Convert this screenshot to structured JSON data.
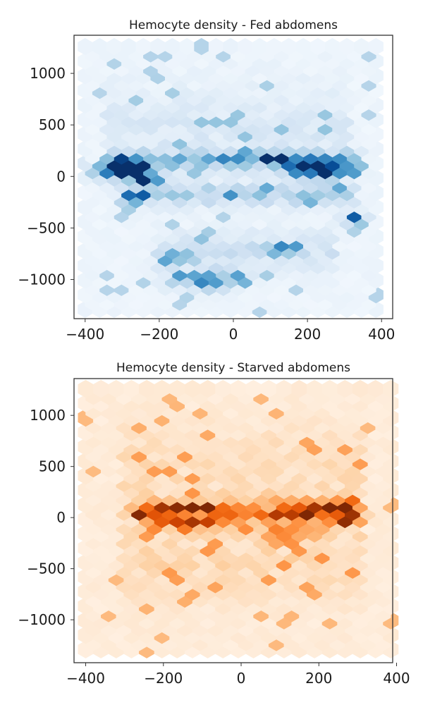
{
  "chart_data": [
    {
      "type": "heatmap",
      "subtype": "hexbin",
      "title": "Hemocyte density - Fed abdomens",
      "xlabel": "",
      "ylabel": "",
      "xlim": [
        -430,
        430
      ],
      "ylim": [
        -1380,
        1370
      ],
      "xticks": [
        -400,
        -200,
        0,
        200,
        400
      ],
      "xtick_labels": [
        "−400",
        "−200",
        "0",
        "200",
        "400"
      ],
      "yticks": [
        -1000,
        -500,
        0,
        500,
        1000
      ],
      "ytick_labels": [
        "−1000",
        "−500",
        "0",
        "500",
        "1000"
      ],
      "colormap": "Blues",
      "grid": false,
      "hex_cols": 20,
      "hex_rows": 36,
      "hotspots": [
        {
          "x": -290,
          "y": 100,
          "sx": 35,
          "sy": 35,
          "w": 1.0
        },
        {
          "x": -250,
          "y": 30,
          "sx": 30,
          "sy": 40,
          "w": 0.9
        },
        {
          "x": -320,
          "y": 80,
          "sx": 40,
          "sy": 50,
          "w": 0.6
        },
        {
          "x": -260,
          "y": -170,
          "sx": 25,
          "sy": 40,
          "w": 0.6
        },
        {
          "x": 180,
          "y": 100,
          "sx": 30,
          "sy": 35,
          "w": 1.0
        },
        {
          "x": 265,
          "y": 100,
          "sx": 40,
          "sy": 40,
          "w": 0.85
        },
        {
          "x": 120,
          "y": 190,
          "sx": 30,
          "sy": 30,
          "w": 0.6
        },
        {
          "x": 230,
          "y": 50,
          "sx": 40,
          "sy": 40,
          "w": 0.5
        },
        {
          "x": 330,
          "y": -400,
          "sx": 20,
          "sy": 40,
          "w": 0.55
        },
        {
          "x": -70,
          "y": -980,
          "sx": 60,
          "sy": 60,
          "w": 0.55
        },
        {
          "x": -160,
          "y": -770,
          "sx": 30,
          "sy": 40,
          "w": 0.5
        },
        {
          "x": 120,
          "y": -680,
          "sx": 30,
          "sy": 40,
          "w": 0.45
        }
      ],
      "bands": [
        {
          "x0": -330,
          "x1": 330,
          "y": 180,
          "sy": 55,
          "w": 0.4
        },
        {
          "x0": -300,
          "x1": 320,
          "y": -150,
          "sy": 70,
          "w": 0.22
        },
        {
          "x0": -200,
          "x1": 250,
          "y": -700,
          "sy": 120,
          "w": 0.12
        },
        {
          "x0": -330,
          "x1": 300,
          "y": 450,
          "sy": 300,
          "w": 0.07
        }
      ],
      "base_intensity": 0.03
    },
    {
      "type": "heatmap",
      "subtype": "hexbin",
      "title": "Hemocyte density - Starved abdomens",
      "xlabel": "",
      "ylabel": "",
      "xlim": [
        -430,
        390
      ],
      "ylim": [
        -1420,
        1360
      ],
      "xticks": [
        -400,
        -200,
        0,
        200,
        400
      ],
      "xtick_labels": [
        "−400",
        "−200",
        "0",
        "200",
        "400"
      ],
      "yticks": [
        -1000,
        -500,
        0,
        500,
        1000
      ],
      "ytick_labels": [
        "−1000",
        "−500",
        "0",
        "500",
        "1000"
      ],
      "colormap": "Oranges",
      "grid": false,
      "hex_cols": 20,
      "hex_rows": 36,
      "hotspots": [
        {
          "x": 180,
          "y": 80,
          "sx": 30,
          "sy": 30,
          "w": 1.0
        },
        {
          "x": 220,
          "y": 130,
          "sx": 40,
          "sy": 30,
          "w": 0.8
        },
        {
          "x": -100,
          "y": 130,
          "sx": 25,
          "sy": 30,
          "w": 0.75
        },
        {
          "x": -100,
          "y": -10,
          "sx": 30,
          "sy": 40,
          "w": 0.8
        },
        {
          "x": -230,
          "y": 90,
          "sx": 40,
          "sy": 30,
          "w": 0.75
        },
        {
          "x": -140,
          "y": 140,
          "sx": 25,
          "sy": 25,
          "w": 0.6
        },
        {
          "x": 80,
          "y": -180,
          "sx": 25,
          "sy": 30,
          "w": 0.6
        },
        {
          "x": 160,
          "y": -110,
          "sx": 30,
          "sy": 30,
          "w": 0.5
        },
        {
          "x": 280,
          "y": 20,
          "sx": 30,
          "sy": 30,
          "w": 0.5
        }
      ],
      "bands": [
        {
          "x0": -260,
          "x1": 300,
          "y": 80,
          "sy": 90,
          "w": 0.35
        },
        {
          "x0": -300,
          "x1": 300,
          "y": -400,
          "sy": 250,
          "w": 0.1
        },
        {
          "x0": -300,
          "x1": 300,
          "y": 500,
          "sy": 300,
          "w": 0.08
        }
      ],
      "base_intensity": 0.05
    }
  ]
}
